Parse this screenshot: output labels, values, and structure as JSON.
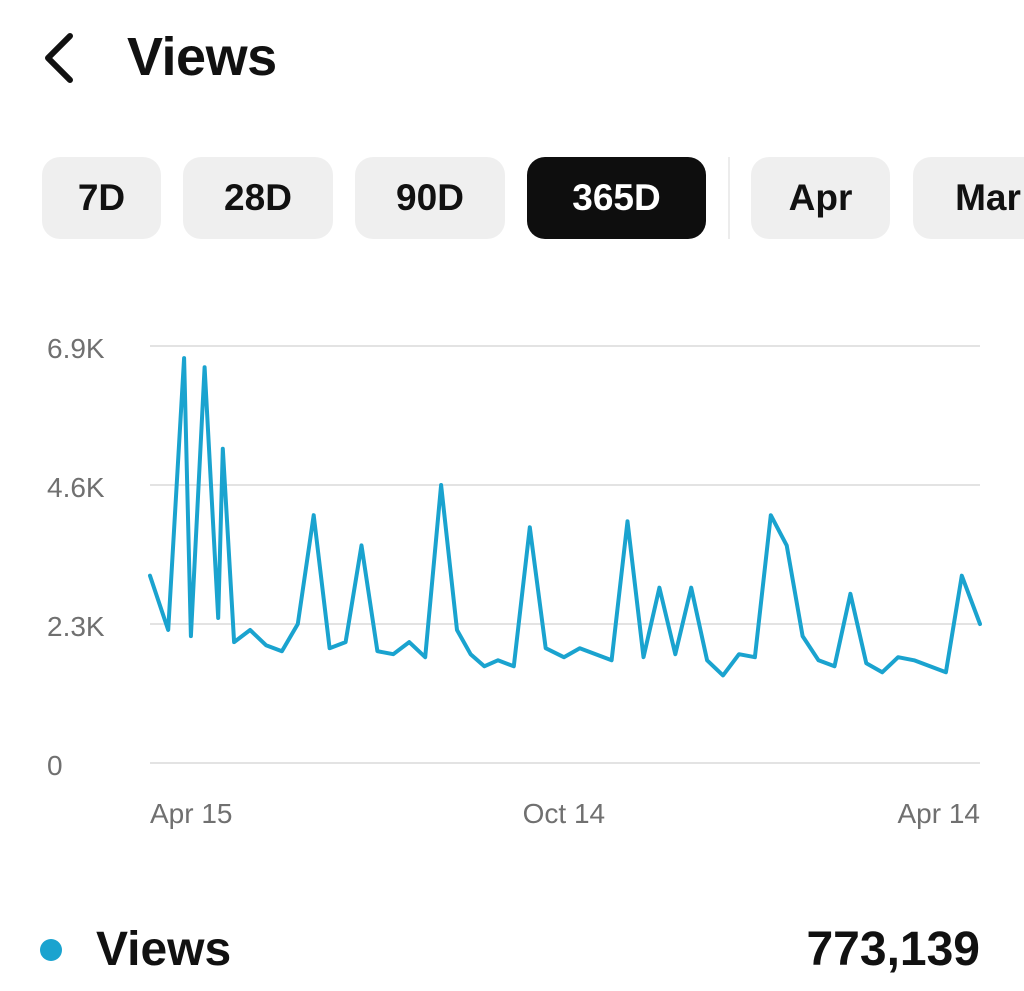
{
  "header": {
    "title": "Views",
    "back_icon": "chevron-left-icon"
  },
  "tabs": [
    {
      "label": "7D",
      "active": false
    },
    {
      "label": "28D",
      "active": false
    },
    {
      "label": "90D",
      "active": false
    },
    {
      "label": "365D",
      "active": true
    },
    {
      "label": "Apr",
      "active": false
    },
    {
      "label": "Mar",
      "active": false
    }
  ],
  "colors": {
    "series": "#1aa3cf",
    "active_tab_bg": "#0e0e0e",
    "tab_bg": "#efefef",
    "gridline": "#e3e3e3",
    "axis_text": "#707070"
  },
  "chart_data": {
    "type": "line",
    "title": "",
    "xlabel": "",
    "ylabel": "",
    "y_ticks": [
      "6.9K",
      "4.6K",
      "2.3K",
      "0"
    ],
    "y_tick_values": [
      6900,
      4600,
      2300,
      0
    ],
    "ylim": [
      0,
      6900
    ],
    "x_tick_labels": [
      "Apr 15",
      "Oct 14",
      "Apr 14"
    ],
    "x_tick_dates": [
      "2023-04-15",
      "2023-10-14",
      "2024-04-14"
    ],
    "xlim": [
      "2023-04-15",
      "2024-04-14"
    ],
    "grid": true,
    "series": [
      {
        "name": "Views",
        "x": [
          "2023-04-15",
          "2023-04-23",
          "2023-04-30",
          "2023-05-03",
          "2023-05-09",
          "2023-05-15",
          "2023-05-17",
          "2023-05-22",
          "2023-05-29",
          "2023-06-05",
          "2023-06-12",
          "2023-06-19",
          "2023-06-26",
          "2023-07-03",
          "2023-07-10",
          "2023-07-17",
          "2023-07-24",
          "2023-07-31",
          "2023-08-07",
          "2023-08-14",
          "2023-08-21",
          "2023-08-28",
          "2023-09-03",
          "2023-09-09",
          "2023-09-15",
          "2023-09-22",
          "2023-09-29",
          "2023-10-06",
          "2023-10-14",
          "2023-10-21",
          "2023-10-28",
          "2023-11-04",
          "2023-11-11",
          "2023-11-18",
          "2023-11-25",
          "2023-12-02",
          "2023-12-09",
          "2023-12-16",
          "2023-12-23",
          "2023-12-30",
          "2024-01-06",
          "2024-01-13",
          "2024-01-20",
          "2024-01-27",
          "2024-02-03",
          "2024-02-10",
          "2024-02-17",
          "2024-02-24",
          "2024-03-02",
          "2024-03-09",
          "2024-03-16",
          "2024-03-23",
          "2024-03-30",
          "2024-04-06",
          "2024-04-14"
        ],
        "y": [
          3100,
          2200,
          6700,
          2100,
          6550,
          2400,
          5200,
          2000,
          2200,
          1950,
          1850,
          2300,
          4100,
          1900,
          2000,
          3600,
          1850,
          1800,
          2000,
          1750,
          4600,
          2200,
          1800,
          1600,
          1700,
          1600,
          3900,
          1900,
          1750,
          1900,
          1800,
          1700,
          4000,
          1750,
          2900,
          1800,
          2900,
          1700,
          1450,
          1800,
          1750,
          4100,
          3600,
          2100,
          1700,
          1600,
          2800,
          1650,
          1500,
          1750,
          1700,
          1600,
          1500,
          3100,
          2300
        ]
      }
    ]
  },
  "legend": {
    "label": "Views",
    "total": "773,139"
  }
}
